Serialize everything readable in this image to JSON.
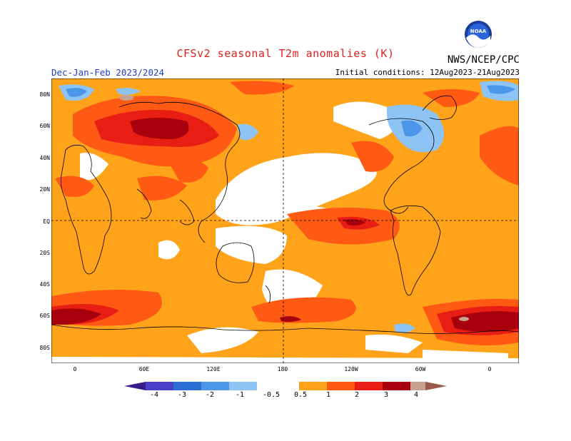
{
  "header": {
    "title": "CFSv2 seasonal T2m anomalies (K)",
    "season": "Dec-Jan-Feb 2023/2024",
    "initial_conditions": "Initial conditions: 12Aug2023-21Aug2023",
    "agency": "NWS/NCEP/CPC",
    "logo_text": "NOAA"
  },
  "map": {
    "lat_labels": [
      "80N",
      "60N",
      "40N",
      "20N",
      "EQ",
      "20S",
      "40S",
      "60S",
      "80S"
    ],
    "lon_labels": [
      "0",
      "60E",
      "120E",
      "180",
      "120W",
      "60W",
      "0"
    ]
  },
  "colorbar": {
    "labels": [
      "-4",
      "-3",
      "-2",
      "-1",
      "-0.5",
      "0.5",
      "1",
      "2",
      "3",
      "4"
    ],
    "colors": {
      "below_-4": "#3a1b8c",
      "-4_-3": "#4a3fc8",
      "-3_-2": "#2c6ed4",
      "-2_-1": "#4b96e8",
      "-1_-0.5": "#8ec4f5",
      "-0.5_0.5": "#ffffff",
      "0.5_1": "#ffa31a",
      "1_2": "#ff5a14",
      "2_3": "#e81e14",
      "3_4": "#a8000c",
      "4_5": "#c8a090",
      "above_5": "#9a5a4a"
    }
  }
}
